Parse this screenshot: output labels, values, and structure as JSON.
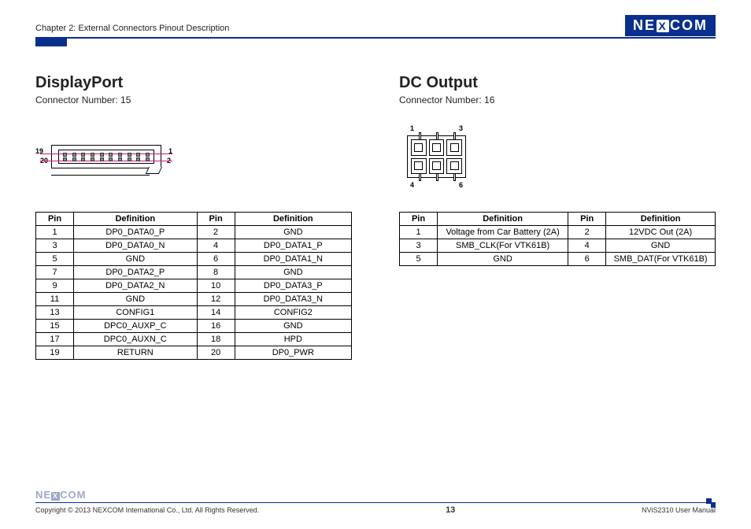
{
  "header": {
    "chapter": "Chapter 2: External Connectors Pinout Description",
    "logo_left": "NE",
    "logo_mid": "X",
    "logo_right": "COM"
  },
  "left": {
    "title": "DisplayPort",
    "subtitle": "Connector Number: 15",
    "diagram": {
      "label_tl": "19",
      "label_bl": "20",
      "label_tr": "1",
      "label_br": "2"
    },
    "table": {
      "headers": [
        "Pin",
        "Definition",
        "Pin",
        "Definition"
      ],
      "rows": [
        [
          "1",
          "DP0_DATA0_P",
          "2",
          "GND"
        ],
        [
          "3",
          "DP0_DATA0_N",
          "4",
          "DP0_DATA1_P"
        ],
        [
          "5",
          "GND",
          "6",
          "DP0_DATA1_N"
        ],
        [
          "7",
          "DP0_DATA2_P",
          "8",
          "GND"
        ],
        [
          "9",
          "DP0_DATA2_N",
          "10",
          "DP0_DATA3_P"
        ],
        [
          "11",
          "GND",
          "12",
          "DP0_DATA3_N"
        ],
        [
          "13",
          "CONFIG1",
          "14",
          "CONFIG2"
        ],
        [
          "15",
          "DPC0_AUXP_C",
          "16",
          "GND"
        ],
        [
          "17",
          "DPC0_AUXN_C",
          "18",
          "HPD"
        ],
        [
          "19",
          "RETURN",
          "20",
          "DP0_PWR"
        ]
      ]
    }
  },
  "right": {
    "title": "DC Output",
    "subtitle": "Connector Number: 16",
    "diagram": {
      "label_tl": "1",
      "label_tr": "3",
      "label_bl": "4",
      "label_br": "6"
    },
    "table": {
      "headers": [
        "Pin",
        "Definition",
        "Pin",
        "Definition"
      ],
      "rows": [
        [
          "1",
          "Voltage from Car Battery (2A)",
          "2",
          "12VDC Out (2A)"
        ],
        [
          "3",
          "SMB_CLK(For VTK61B)",
          "4",
          "GND"
        ],
        [
          "5",
          "GND",
          "6",
          "SMB_DAT(For VTK61B)"
        ]
      ]
    }
  },
  "footer": {
    "logo_left": "NE",
    "logo_mid": "X",
    "logo_right": "COM",
    "copyright": "Copyright © 2013 NEXCOM International Co., Ltd. All Rights Reserved.",
    "page": "13",
    "manual": "NViS2310 User Manual"
  }
}
